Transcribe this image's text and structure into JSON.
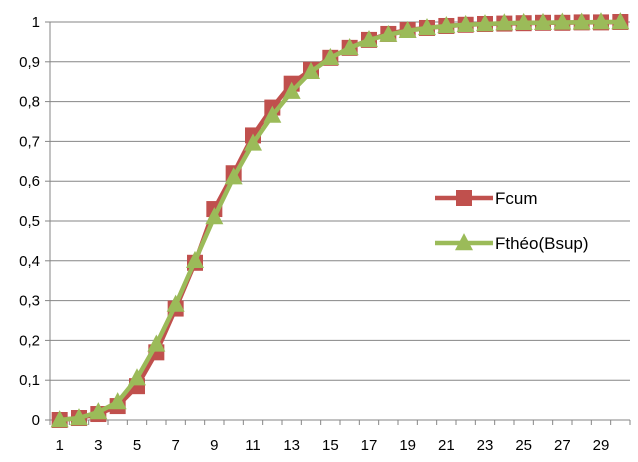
{
  "chart_data": {
    "type": "line",
    "title": "",
    "xlabel": "",
    "ylabel": "",
    "x": [
      1,
      2,
      3,
      4,
      5,
      6,
      7,
      8,
      9,
      10,
      11,
      12,
      13,
      14,
      15,
      16,
      17,
      18,
      19,
      20,
      21,
      22,
      23,
      24,
      25,
      26,
      27,
      28,
      29,
      30
    ],
    "x_tick_labels": [
      "1",
      "3",
      "5",
      "7",
      "9",
      "11",
      "13",
      "15",
      "17",
      "19",
      "21",
      "23",
      "25",
      "27",
      "29"
    ],
    "y_tick_labels": [
      "0",
      "0,1",
      "0,2",
      "0,3",
      "0,4",
      "0,5",
      "0,6",
      "0,7",
      "0,8",
      "0,9",
      "1"
    ],
    "ylim": [
      0,
      1
    ],
    "grid": "horizontal",
    "legend_position": "right",
    "series": [
      {
        "name": "Fcum",
        "color": "#c0504d",
        "marker": "square",
        "values": [
          0.0,
          0.005,
          0.015,
          0.035,
          0.085,
          0.17,
          0.28,
          0.395,
          0.53,
          0.62,
          0.715,
          0.785,
          0.845,
          0.88,
          0.91,
          0.935,
          0.955,
          0.97,
          0.98,
          0.985,
          0.99,
          0.993,
          0.995,
          0.996,
          0.997,
          0.998,
          0.998,
          0.999,
          0.999,
          1.0
        ]
      },
      {
        "name": "Fthéo(Bsup)",
        "color": "#9bbb59",
        "marker": "triangle",
        "values": [
          0.0,
          0.005,
          0.02,
          0.045,
          0.105,
          0.19,
          0.29,
          0.4,
          0.51,
          0.61,
          0.695,
          0.765,
          0.825,
          0.875,
          0.91,
          0.935,
          0.955,
          0.968,
          0.978,
          0.985,
          0.99,
          0.993,
          0.995,
          0.997,
          0.998,
          0.998,
          0.999,
          0.999,
          1.0,
          1.0
        ]
      }
    ]
  }
}
